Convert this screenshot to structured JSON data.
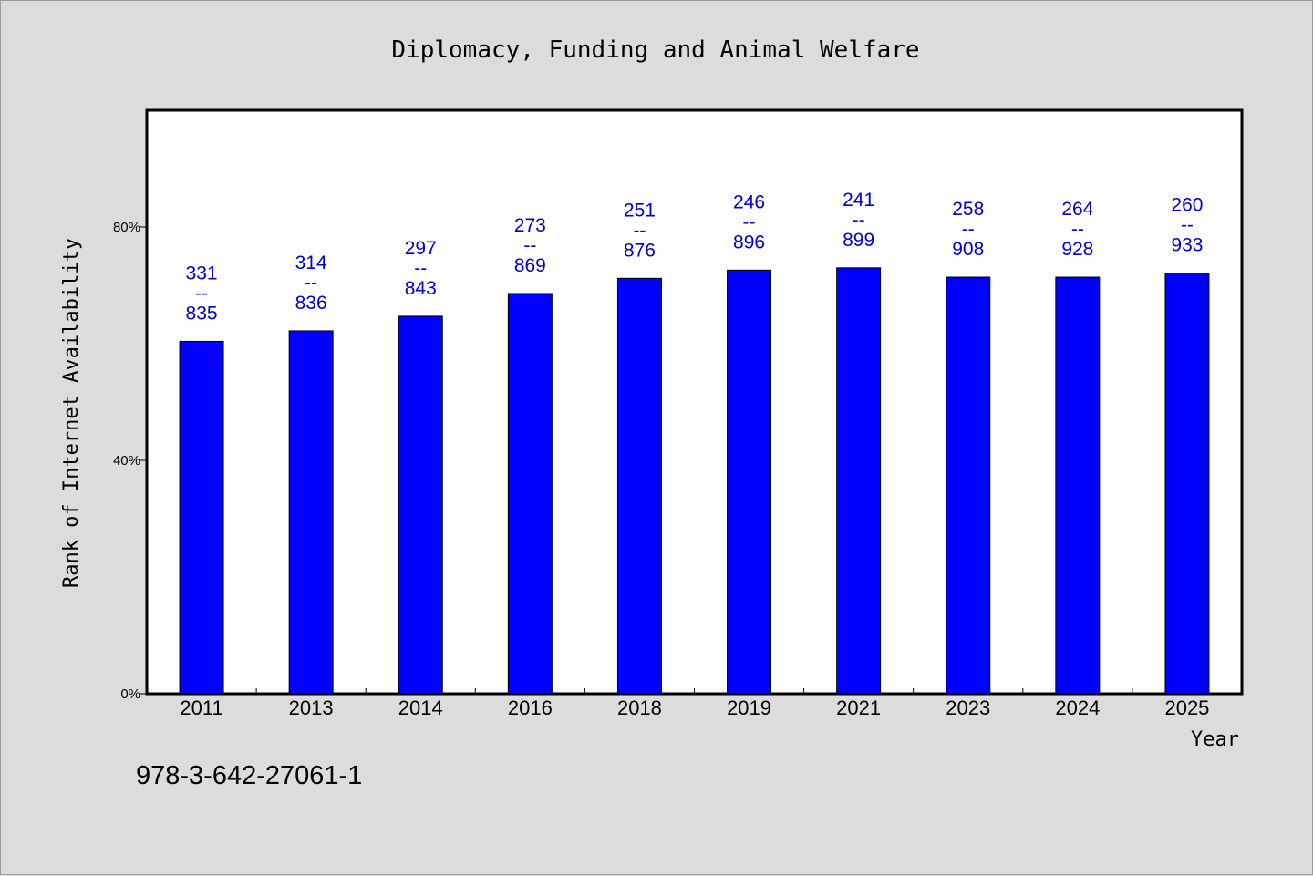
{
  "chart_data": {
    "type": "bar",
    "title": "Diplomacy, Funding and Animal Welfare",
    "xlabel": "Year",
    "ylabel": "Rank of Internet Availability",
    "categories": [
      "2011",
      "2013",
      "2014",
      "2016",
      "2018",
      "2019",
      "2021",
      "2023",
      "2024",
      "2025"
    ],
    "values": [
      60.4,
      62.2,
      64.7,
      68.6,
      71.2,
      72.6,
      73.0,
      71.4,
      71.4,
      72.1
    ],
    "data_labels_top": [
      "331",
      "314",
      "297",
      "273",
      "251",
      "246",
      "241",
      "258",
      "264",
      "260"
    ],
    "data_labels_sep": "--",
    "data_labels_bottom": [
      "835",
      "836",
      "843",
      "869",
      "876",
      "896",
      "899",
      "908",
      "928",
      "933"
    ],
    "ylim": [
      0,
      100
    ],
    "y_ticks": [
      0,
      40,
      80
    ],
    "y_tick_labels": [
      "0%",
      "40%",
      "80%"
    ],
    "grid": false,
    "bar_color": "#0000ff",
    "label_color": "#0000cc"
  },
  "footnote": "978-3-642-27061-1"
}
